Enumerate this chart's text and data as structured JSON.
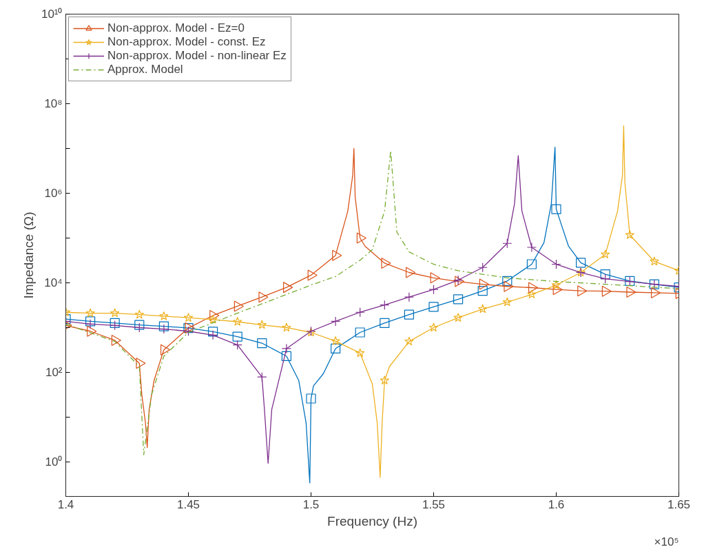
{
  "chart_data": {
    "type": "line",
    "xlabel": "Frequency (Hz)",
    "ylabel": "Impedance (Ω)",
    "log": "y",
    "grid": false,
    "legend": "top left",
    "annotations": [
      "×10⁵"
    ],
    "xlim": [
      1.4,
      1.65
    ],
    "xticks": [
      1.4,
      1.45,
      1.5,
      1.55,
      1.6,
      1.65
    ],
    "ylim": [
      0.17,
      10000000000
    ],
    "yticks": [
      {
        "value": 1,
        "label": "10⁰"
      },
      {
        "value": 10,
        "label": null
      },
      {
        "value": 100,
        "label": "10²"
      },
      {
        "value": 1000,
        "label": null
      },
      {
        "value": 10000,
        "label": "10⁴"
      },
      {
        "value": 100000,
        "label": null
      },
      {
        "value": 1000000,
        "label": "10⁶"
      },
      {
        "value": 10000000,
        "label": null
      },
      {
        "value": 100000000,
        "label": "10⁸"
      },
      {
        "value": 1000000000,
        "label": null
      },
      {
        "value": 10000000000,
        "label": "10¹⁰"
      }
    ],
    "series": [
      {
        "color": "#0072bd",
        "marker": "square",
        "line_style": "solid",
        "x": [
          1.4,
          1.41,
          1.42,
          1.43,
          1.44,
          1.45,
          1.46,
          1.47,
          1.48,
          1.49,
          1.495,
          1.498,
          1.4995,
          1.5,
          1.501,
          1.505,
          1.51,
          1.52,
          1.53,
          1.54,
          1.55,
          1.56,
          1.57,
          1.58,
          1.59,
          1.595,
          1.598,
          1.5995,
          1.6,
          1.605,
          1.61,
          1.62,
          1.63,
          1.64,
          1.65
        ],
        "values": [
          1550,
          1380,
          1260,
          1150,
          1070,
          980,
          810,
          630,
          450,
          230,
          66,
          7.4,
          0.34,
          26,
          50,
          93,
          340,
          780,
          1260,
          1950,
          2900,
          4300,
          6600,
          11000,
          26000,
          79000,
          590000,
          10700000,
          440000,
          66000,
          28000,
          15500,
          11000,
          9300,
          7900
        ]
      },
      {
        "name": "Non-approx. Model - Ez=0",
        "color": "#d95319",
        "marker": "triangle",
        "line_style": "solid",
        "x": [
          1.4,
          1.41,
          1.42,
          1.43,
          1.431,
          1.4325,
          1.4332,
          1.434,
          1.436,
          1.44,
          1.45,
          1.46,
          1.47,
          1.48,
          1.49,
          1.5,
          1.51,
          1.515,
          1.517,
          1.5175,
          1.518,
          1.52,
          1.522,
          1.53,
          1.54,
          1.55,
          1.56,
          1.57,
          1.58,
          1.59,
          1.6,
          1.61,
          1.62,
          1.63,
          1.64,
          1.65
        ],
        "values": [
          1120,
          830,
          520,
          160,
          32,
          7.4,
          2.1,
          15,
          66,
          320,
          980,
          1860,
          3000,
          4800,
          7900,
          14800,
          41000,
          400000,
          2500000,
          10000000,
          830000,
          100000,
          66000,
          27500,
          17000,
          12900,
          10700,
          9300,
          8300,
          7800,
          7100,
          6600,
          6500,
          6200,
          6000,
          5800
        ]
      },
      {
        "name": "Non-approx. Model - const. Ez",
        "color": "#edb120",
        "marker": "star",
        "line_style": "solid",
        "x": [
          1.4,
          1.41,
          1.42,
          1.43,
          1.44,
          1.45,
          1.46,
          1.47,
          1.48,
          1.49,
          1.5,
          1.51,
          1.52,
          1.525,
          1.527,
          1.5282,
          1.529,
          1.53,
          1.532,
          1.54,
          1.55,
          1.56,
          1.57,
          1.58,
          1.59,
          1.6,
          1.61,
          1.62,
          1.625,
          1.627,
          1.6275,
          1.628,
          1.63,
          1.64,
          1.65
        ],
        "values": [
          2200,
          2100,
          2100,
          1950,
          1800,
          1660,
          1510,
          1350,
          1150,
          1000,
          780,
          500,
          270,
          55,
          7.4,
          0.45,
          7.4,
          66,
          135,
          490,
          1000,
          1660,
          2600,
          3700,
          5500,
          8900,
          17000,
          43000,
          400000,
          2500000,
          32000000,
          1700000,
          117000,
          30000,
          18600
        ]
      },
      {
        "name": "Non-approx. Model - non-linear Ez",
        "color": "#7e2f8e",
        "marker": "cross",
        "line_style": "solid",
        "x": [
          1.4,
          1.41,
          1.42,
          1.43,
          1.44,
          1.45,
          1.46,
          1.47,
          1.48,
          1.481,
          1.4825,
          1.484,
          1.49,
          1.5,
          1.51,
          1.52,
          1.53,
          1.54,
          1.55,
          1.56,
          1.57,
          1.58,
          1.583,
          1.5845,
          1.586,
          1.59,
          1.6,
          1.61,
          1.62,
          1.63,
          1.64,
          1.65
        ],
        "values": [
          1380,
          1200,
          1120,
          1000,
          930,
          830,
          680,
          410,
          79,
          15,
          0.93,
          15,
          340,
          830,
          1380,
          2200,
          3200,
          4800,
          7100,
          11500,
          22000,
          76000,
          590000,
          6900000,
          400000,
          62000,
          26000,
          17000,
          12300,
          10700,
          9300,
          8300
        ]
      },
      {
        "name": "Approx. Model",
        "color": "#77ac30",
        "marker": "none",
        "line_style": "dashed",
        "x": [
          1.4,
          1.42,
          1.43,
          1.4318,
          1.435,
          1.44,
          1.45,
          1.47,
          1.49,
          1.5,
          1.51,
          1.52,
          1.525,
          1.53,
          1.5325,
          1.535,
          1.54,
          1.55,
          1.56,
          1.58,
          1.6,
          1.62,
          1.65
        ],
        "values": [
          1200,
          490,
          135,
          1.45,
          32,
          230,
          780,
          2100,
          5500,
          8900,
          13800,
          32000,
          55000,
          400000,
          8900000,
          135000,
          49000,
          26000,
          18600,
          12900,
          10700,
          9300,
          7400
        ]
      }
    ]
  }
}
